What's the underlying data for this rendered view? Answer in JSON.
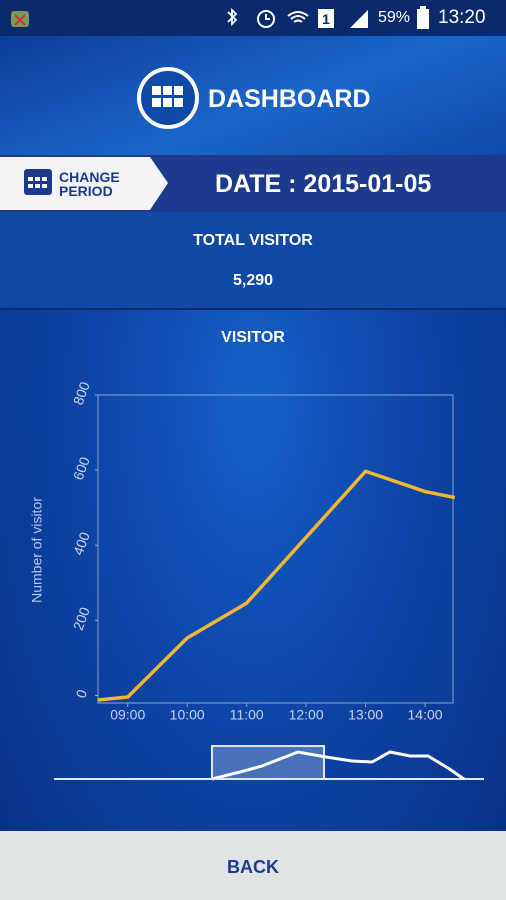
{
  "status_bar": {
    "battery": "59%",
    "time": "13:20"
  },
  "header": {
    "title": "DASHBOARD"
  },
  "period": {
    "button": [
      "CHANGE",
      "PERIOD"
    ],
    "date": "DATE : 2015-01-05"
  },
  "summary": {
    "label": "TOTAL VISITOR",
    "value": "5,290"
  },
  "footer": {
    "button": "BACK"
  },
  "chart_data": {
    "type": "line",
    "title": "VISITOR",
    "y_label": "Number of visitor",
    "x": [
      8.5,
      9,
      10,
      11,
      12,
      13,
      14,
      14.5
    ],
    "series": [
      {
        "color": "#f2b632",
        "values": [
          -12,
          -4,
          153,
          246,
          421,
          597,
          543,
          527
        ]
      }
    ],
    "xlim": [
      8.5,
      14.47
    ],
    "xticks": [
      {
        "value": 9,
        "label": "09:00"
      },
      {
        "value": 10,
        "label": "10:00"
      },
      {
        "value": 11,
        "label": "11:00"
      },
      {
        "value": 12,
        "label": "12:00"
      },
      {
        "value": 13,
        "label": "13:00"
      },
      {
        "value": 14,
        "label": "14:00"
      }
    ],
    "ylim": [
      -20,
      800
    ],
    "yticks": [
      0,
      200,
      400,
      600,
      800
    ],
    "grid": false
  }
}
